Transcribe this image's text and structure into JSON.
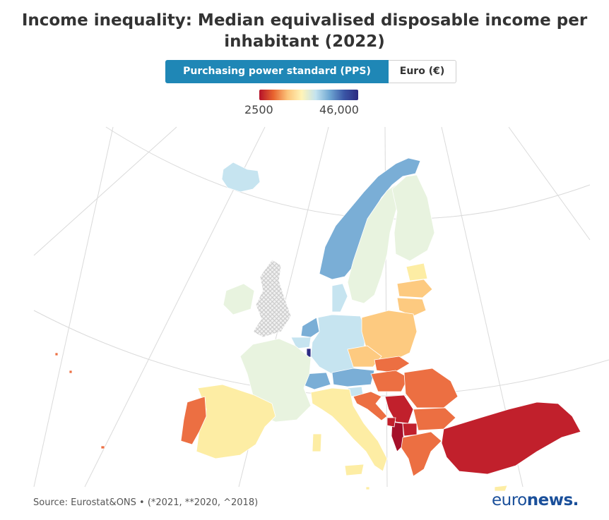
{
  "title": {
    "line1": "Income inequality: Median equivalised disposable income per",
    "line2": "inhabitant (2022)"
  },
  "toggle": {
    "options": [
      "Purchasing power standard (PPS)",
      "Euro (€)"
    ],
    "selected": "Purchasing power standard (PPS)"
  },
  "legend": {
    "min_label": "2500",
    "max_label": "46,000",
    "colors": [
      "#b5122a",
      "#e8642f",
      "#fcc47a",
      "#fff4b8",
      "#c3e3ef",
      "#6ea6d2",
      "#3a56a6",
      "#2c2a80"
    ]
  },
  "source": "Source: Eurostat&ONS • (*2021, **2020, ^2018)",
  "logo": {
    "part1": "euro",
    "part2": "news",
    "dot": "."
  },
  "colors": {
    "very_high": "#2d2c84",
    "high": "#7aaed6",
    "mid_high": "#c6e4f0",
    "mid": "#e8f3df",
    "mid_low": "#fdeda4",
    "low": "#fdca80",
    "lower": "#ec6f42",
    "lowest": "#c1202c",
    "darkest": "#a5102a",
    "no_data": "#dedede",
    "grid": "#d9d9d9"
  }
}
